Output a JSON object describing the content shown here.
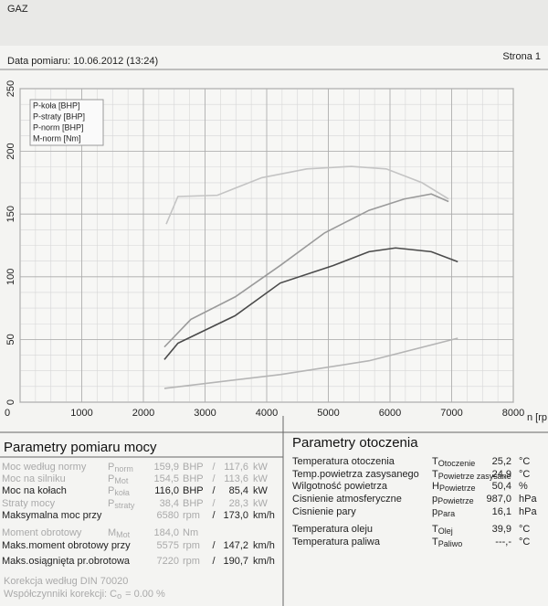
{
  "header": {
    "title": "GAZ",
    "date": "Data pomiaru: 10.06.2012 (13:24)",
    "page": "Strona 1"
  },
  "chart_data": {
    "type": "line",
    "x_label": "n [rp",
    "xlim": [
      0,
      8000
    ],
    "xticks": [
      0,
      1000,
      2000,
      3000,
      4000,
      5000,
      6000,
      7000,
      8000
    ],
    "ylim": [
      0,
      250
    ],
    "yticks": [
      0,
      50,
      100,
      150,
      200,
      250
    ],
    "grid": true,
    "legend": "upper left",
    "series": [
      {
        "name": "P-koła [BHP]",
        "color": "#4a4a4a",
        "x": [
          2340,
          2560,
          3490,
          4220,
          5080,
          5660,
          6090,
          6670,
          7100
        ],
        "values": [
          34,
          47,
          69,
          95,
          109,
          120,
          123,
          120,
          112
        ]
      },
      {
        "name": "P-straty [BHP]",
        "color": "#b5b5b5",
        "x": [
          2340,
          4220,
          5660,
          7100
        ],
        "values": [
          11,
          22,
          33,
          51
        ]
      },
      {
        "name": "P-norm [BHP]",
        "color": "#9a9a9a",
        "x": [
          2340,
          2770,
          3490,
          4220,
          4940,
          5660,
          6230,
          6670,
          6950
        ],
        "values": [
          44,
          66,
          84,
          109,
          135,
          153,
          162,
          166,
          160
        ]
      },
      {
        "name": "M-norm [Nm]",
        "color": "#c4c4c4",
        "x": [
          2370,
          2560,
          3200,
          3920,
          4650,
          5370,
          5940,
          6520,
          6950
        ],
        "values": [
          142,
          164,
          165,
          179,
          186,
          188,
          186,
          175,
          162
        ]
      }
    ]
  },
  "power_table": {
    "title": "Parametry pomiaru mocy",
    "rows": [
      {
        "label": "Moc według normy",
        "sym": "P",
        "sub": "norm",
        "v1": "159,9",
        "u1": "BHP",
        "sep": "/",
        "v2": "117,6",
        "u2": "kW"
      },
      {
        "label": "Moc na silniku",
        "sym": "P",
        "sub": "Mot",
        "v1": "154,5",
        "u1": "BHP",
        "sep": "/",
        "v2": "113,6",
        "u2": "kW"
      },
      {
        "label": "Moc na kołach",
        "sym": "P",
        "sub": "koła",
        "v1": "116,0",
        "u1": "BHP",
        "sep": "/",
        "v2": "85,4",
        "u2": "kW"
      },
      {
        "label": "Straty mocy",
        "sym": "P",
        "sub": "straty",
        "v1": "38,4",
        "u1": "BHP",
        "sep": "/",
        "v2": "28,3",
        "u2": "kW"
      },
      {
        "label": "Maksymalna moc przy",
        "v1": "6580",
        "u1": "rpm",
        "sep": "/",
        "v2": "173,0",
        "u2": "km/h"
      },
      {
        "label": "Moment obrotowy",
        "sym": "M",
        "sub": "Mot",
        "v1": "184,0",
        "u1": "Nm"
      },
      {
        "label": "Maks.moment obrotowy przy",
        "v1": "5575",
        "u1": "rpm",
        "sep": "/",
        "v2": "147,2",
        "u2": "km/h"
      },
      {
        "label": "Maks.osiągnięta pr.obrotowa",
        "v1": "7220",
        "u1": "rpm",
        "sep": "/",
        "v2": "190,7",
        "u2": "km/h"
      }
    ]
  },
  "ambient_table": {
    "title": "Parametry otoczenia",
    "rows": [
      {
        "label": "Temperatura otoczenia",
        "sym": "T",
        "sub": "Otoczenie",
        "value": "25,2",
        "unit": "°C"
      },
      {
        "label": "Temp.powietrza zasysanego",
        "sym": "T",
        "sub": "Powietrze zasysane",
        "value": "24,9",
        "unit": "°C"
      },
      {
        "label": "Wilgotność powietrza",
        "sym": "H",
        "sub": "Powietrze",
        "value": "50,4",
        "unit": "%"
      },
      {
        "label": "Cisnienie atmosferyczne",
        "sym": "p",
        "sub": "Powietrze",
        "value": "987,0",
        "unit": "hPa"
      },
      {
        "label": "Cisnienie pary",
        "sym": "p",
        "sub": "Para",
        "value": "16,1",
        "unit": "hPa"
      },
      {
        "label": "Temperatura oleju",
        "sym": "T",
        "sub": "Olej",
        "value": "39,9",
        "unit": "°C"
      },
      {
        "label": "Temperatura paliwa",
        "sym": "T",
        "sub": "Paliwo",
        "value": "---,-",
        "unit": "°C"
      }
    ]
  },
  "footer": {
    "correction": "Korekcja według DIN 70020",
    "coefficient": "Współczynniki korekcji: C",
    "coefficient_sub": "o",
    "coefficient_value": "= 0.00 %"
  }
}
